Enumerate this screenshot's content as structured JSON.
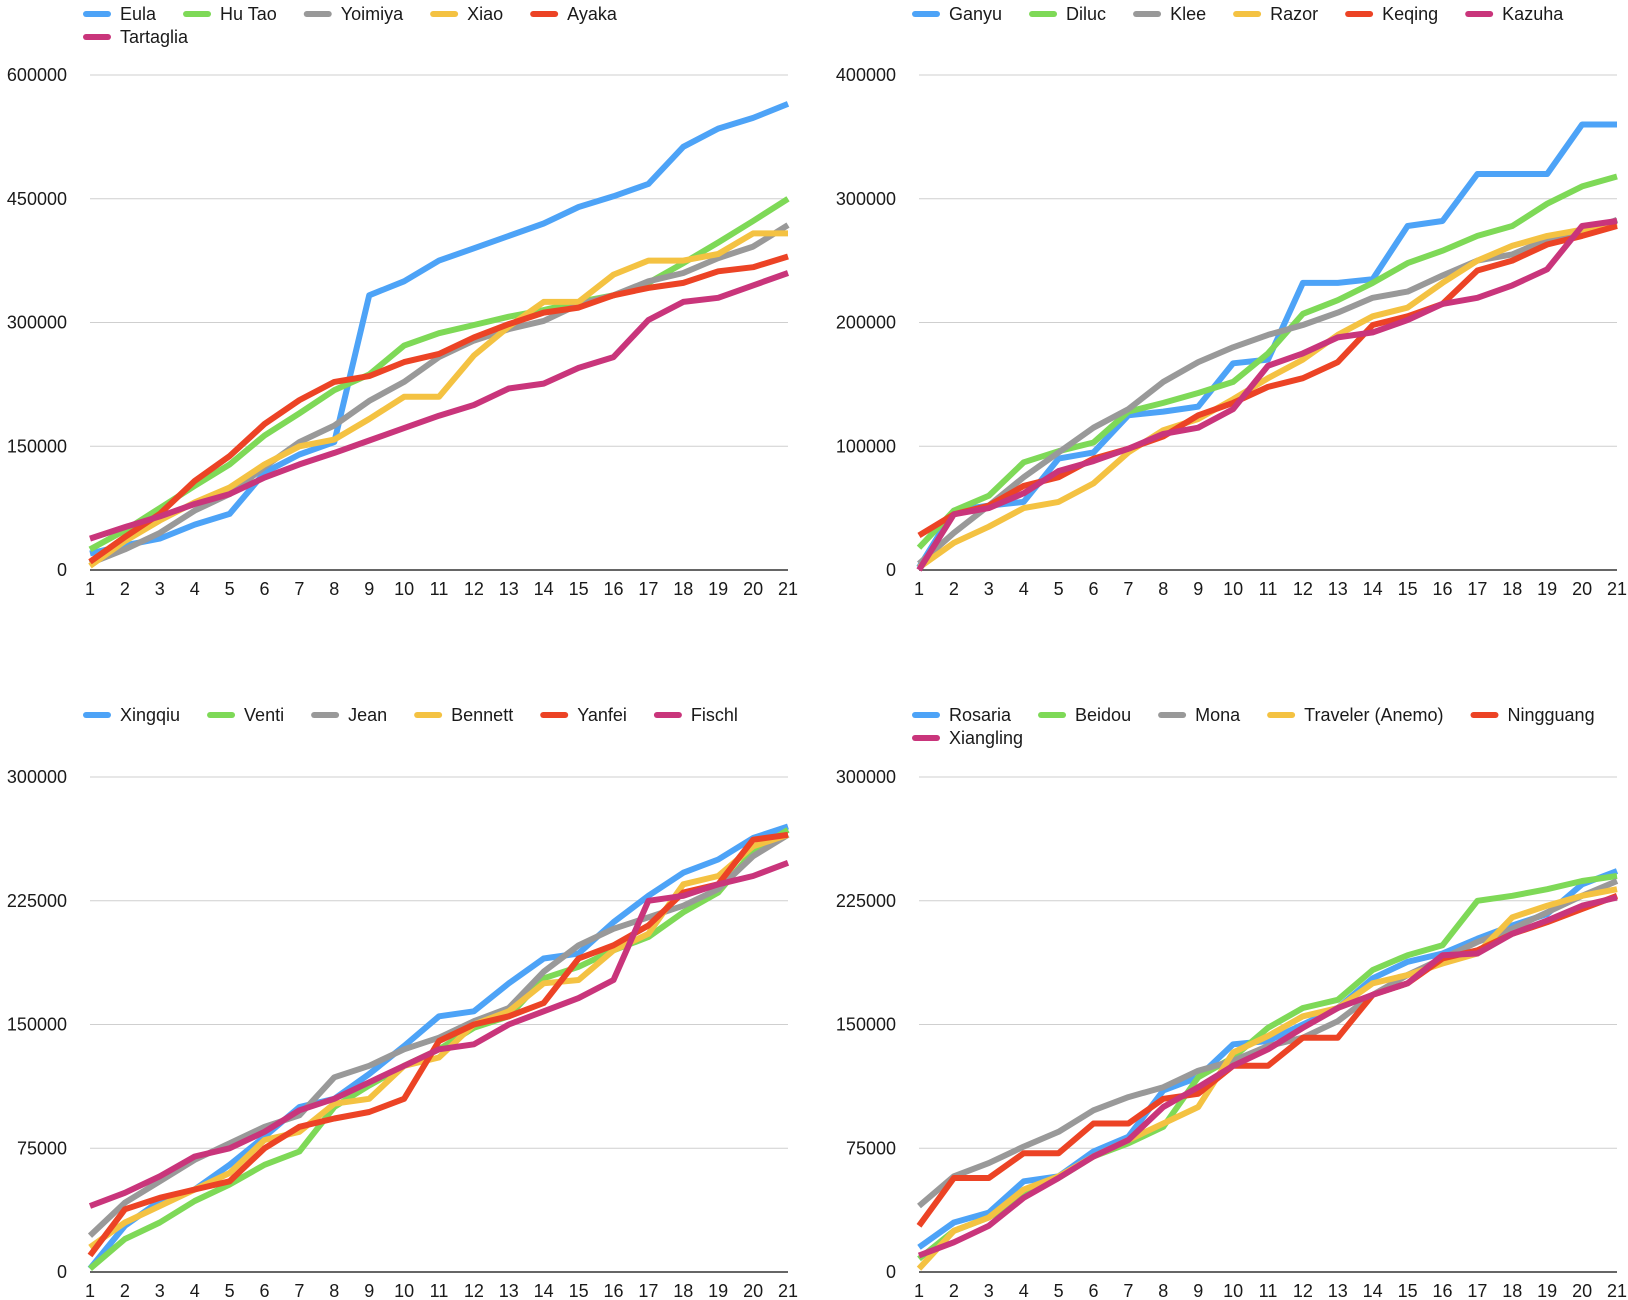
{
  "colors": {
    "blue": "#4DA3F7",
    "green": "#7ED957",
    "gray": "#999999",
    "yellow": "#F4C242",
    "red": "#EC4325",
    "magenta": "#C9357B",
    "grid": "#cfcfcf",
    "axis": "#333333",
    "text": "#1a1a1a"
  },
  "chart_data": [
    {
      "type": "line",
      "title": "",
      "xlabel": "",
      "ylabel": "",
      "x": [
        1,
        2,
        3,
        4,
        5,
        6,
        7,
        8,
        9,
        10,
        11,
        12,
        13,
        14,
        15,
        16,
        17,
        18,
        19,
        20,
        21
      ],
      "ylim": [
        0,
        600000
      ],
      "yticks": [
        "0",
        "150000",
        "300000",
        "450000",
        "600000"
      ],
      "grid": true,
      "legend": "top",
      "series": [
        {
          "name": "Eula",
          "color": "blue",
          "values": [
            20000,
            30000,
            38000,
            55000,
            68000,
            118000,
            140000,
            155000,
            333000,
            350000,
            375000,
            390000,
            405000,
            420000,
            440000,
            453000,
            468000,
            513000,
            535000,
            548000,
            565000
          ]
        },
        {
          "name": "Hu Tao",
          "color": "green",
          "values": [
            25000,
            48000,
            75000,
            102000,
            128000,
            163000,
            190000,
            218000,
            237000,
            272000,
            287000,
            297000,
            307000,
            315000,
            325000,
            333000,
            348000,
            372000,
            397000,
            423000,
            450000
          ]
        },
        {
          "name": "Yoimiya",
          "color": "gray",
          "values": [
            8000,
            25000,
            45000,
            72000,
            92000,
            125000,
            155000,
            175000,
            205000,
            228000,
            258000,
            278000,
            292000,
            302000,
            322000,
            333000,
            350000,
            360000,
            378000,
            392000,
            418000
          ]
        },
        {
          "name": "Xiao",
          "color": "yellow",
          "values": [
            5000,
            35000,
            60000,
            82000,
            100000,
            128000,
            150000,
            158000,
            183000,
            210000,
            210000,
            260000,
            295000,
            325000,
            325000,
            358000,
            375000,
            375000,
            383000,
            408000,
            408000
          ]
        },
        {
          "name": "Ayaka",
          "color": "red",
          "values": [
            10000,
            40000,
            68000,
            108000,
            138000,
            177000,
            206000,
            228000,
            235000,
            252000,
            262000,
            282000,
            298000,
            312000,
            318000,
            333000,
            342000,
            348000,
            362000,
            367000,
            380000
          ]
        },
        {
          "name": "Tartaglia",
          "color": "magenta",
          "values": [
            38000,
            52000,
            65000,
            80000,
            92000,
            112000,
            128000,
            142000,
            157000,
            172000,
            187000,
            200000,
            220000,
            226000,
            245000,
            258000,
            303000,
            325000,
            330000,
            345000,
            360000
          ]
        }
      ]
    },
    {
      "type": "line",
      "title": "",
      "xlabel": "",
      "ylabel": "",
      "x": [
        1,
        2,
        3,
        4,
        5,
        6,
        7,
        8,
        9,
        10,
        11,
        12,
        13,
        14,
        15,
        16,
        17,
        18,
        19,
        20,
        21
      ],
      "ylim": [
        0,
        400000
      ],
      "yticks": [
        "0",
        "100000",
        "200000",
        "300000",
        "400000"
      ],
      "grid": true,
      "legend": "top",
      "series": [
        {
          "name": "Ganyu",
          "color": "blue",
          "values": [
            2000,
            48000,
            52000,
            55000,
            90000,
            95000,
            125000,
            128000,
            132000,
            167000,
            170000,
            232000,
            232000,
            235000,
            278000,
            282000,
            320000,
            320000,
            320000,
            360000,
            360000
          ]
        },
        {
          "name": "Diluc",
          "color": "green",
          "values": [
            18000,
            48000,
            60000,
            87000,
            96000,
            103000,
            128000,
            135000,
            143000,
            152000,
            175000,
            207000,
            218000,
            232000,
            248000,
            258000,
            270000,
            278000,
            296000,
            310000,
            318000
          ]
        },
        {
          "name": "Klee",
          "color": "gray",
          "values": [
            5000,
            30000,
            52000,
            75000,
            95000,
            115000,
            130000,
            152000,
            168000,
            180000,
            190000,
            198000,
            208000,
            220000,
            225000,
            238000,
            250000,
            255000,
            267000,
            272000,
            283000
          ]
        },
        {
          "name": "Razor",
          "color": "yellow",
          "values": [
            2000,
            22000,
            35000,
            50000,
            55000,
            70000,
            95000,
            113000,
            122000,
            138000,
            155000,
            170000,
            190000,
            205000,
            212000,
            232000,
            250000,
            262000,
            270000,
            275000,
            280000
          ]
        },
        {
          "name": "Keqing",
          "color": "red",
          "values": [
            28000,
            45000,
            52000,
            68000,
            75000,
            90000,
            98000,
            108000,
            125000,
            135000,
            148000,
            155000,
            168000,
            198000,
            205000,
            215000,
            242000,
            250000,
            263000,
            270000,
            278000
          ]
        },
        {
          "name": "Kazuha",
          "color": "magenta",
          "values": [
            0,
            45000,
            50000,
            62000,
            80000,
            88000,
            98000,
            110000,
            115000,
            130000,
            165000,
            175000,
            188000,
            192000,
            202000,
            215000,
            220000,
            230000,
            243000,
            278000,
            282000
          ]
        }
      ]
    },
    {
      "type": "line",
      "title": "",
      "xlabel": "",
      "ylabel": "",
      "x": [
        1,
        2,
        3,
        4,
        5,
        6,
        7,
        8,
        9,
        10,
        11,
        12,
        13,
        14,
        15,
        16,
        17,
        18,
        19,
        20,
        21
      ],
      "ylim": [
        0,
        300000
      ],
      "yticks": [
        "0",
        "75000",
        "150000",
        "225000",
        "300000"
      ],
      "grid": true,
      "legend": "top",
      "series": [
        {
          "name": "Xingqiu",
          "color": "blue",
          "values": [
            2000,
            28000,
            43000,
            50000,
            65000,
            82000,
            100000,
            105000,
            120000,
            137000,
            155000,
            158000,
            175000,
            190000,
            193000,
            212000,
            228000,
            242000,
            250000,
            263000,
            270000
          ]
        },
        {
          "name": "Venti",
          "color": "green",
          "values": [
            2000,
            20000,
            30000,
            43000,
            53000,
            65000,
            73000,
            100000,
            113000,
            125000,
            135000,
            148000,
            155000,
            178000,
            185000,
            195000,
            203000,
            218000,
            230000,
            255000,
            268000
          ]
        },
        {
          "name": "Jean",
          "color": "gray",
          "values": [
            22000,
            42000,
            55000,
            68000,
            78000,
            88000,
            95000,
            118000,
            125000,
            135000,
            142000,
            152000,
            160000,
            182000,
            198000,
            208000,
            215000,
            222000,
            232000,
            252000,
            265000
          ]
        },
        {
          "name": "Bennett",
          "color": "yellow",
          "values": [
            15000,
            30000,
            40000,
            50000,
            60000,
            80000,
            85000,
            102000,
            105000,
            125000,
            130000,
            150000,
            158000,
            175000,
            177000,
            195000,
            205000,
            235000,
            240000,
            258000,
            265000
          ]
        },
        {
          "name": "Yanfei",
          "color": "red",
          "values": [
            10000,
            38000,
            45000,
            50000,
            55000,
            75000,
            88000,
            93000,
            97000,
            105000,
            140000,
            150000,
            155000,
            163000,
            190000,
            198000,
            210000,
            230000,
            235000,
            262000,
            265000
          ]
        },
        {
          "name": "Fischl",
          "color": "magenta",
          "values": [
            40000,
            48000,
            58000,
            70000,
            75000,
            85000,
            98000,
            105000,
            115000,
            125000,
            135000,
            138000,
            150000,
            158000,
            166000,
            177000,
            225000,
            228000,
            235000,
            240000,
            248000
          ]
        }
      ]
    },
    {
      "type": "line",
      "title": "",
      "xlabel": "",
      "ylabel": "",
      "x": [
        1,
        2,
        3,
        4,
        5,
        6,
        7,
        8,
        9,
        10,
        11,
        12,
        13,
        14,
        15,
        16,
        17,
        18,
        19,
        20,
        21
      ],
      "ylim": [
        0,
        300000
      ],
      "yticks": [
        "0",
        "75000",
        "150000",
        "225000",
        "300000"
      ],
      "grid": true,
      "legend": "top",
      "series": [
        {
          "name": "Rosaria",
          "color": "blue",
          "values": [
            15000,
            30000,
            36000,
            55000,
            58000,
            73000,
            82000,
            110000,
            118000,
            138000,
            140000,
            150000,
            160000,
            178000,
            188000,
            193000,
            202000,
            210000,
            217000,
            235000,
            243000
          ]
        },
        {
          "name": "Beidou",
          "color": "green",
          "values": [
            8000,
            25000,
            33000,
            46000,
            57000,
            70000,
            78000,
            88000,
            118000,
            130000,
            148000,
            160000,
            165000,
            183000,
            192000,
            198000,
            225000,
            228000,
            232000,
            237000,
            240000
          ]
        },
        {
          "name": "Mona",
          "color": "gray",
          "values": [
            40000,
            58000,
            66000,
            76000,
            85000,
            98000,
            106000,
            112000,
            122000,
            128000,
            137000,
            142000,
            152000,
            168000,
            180000,
            190000,
            200000,
            208000,
            218000,
            228000,
            237000
          ]
        },
        {
          "name": "Traveler (Anemo)",
          "color": "yellow",
          "values": [
            2000,
            25000,
            33000,
            50000,
            58000,
            70000,
            80000,
            90000,
            100000,
            133000,
            143000,
            155000,
            160000,
            175000,
            180000,
            187000,
            193000,
            215000,
            222000,
            228000,
            232000
          ]
        },
        {
          "name": "Ningguang",
          "color": "red",
          "values": [
            28000,
            57000,
            57000,
            72000,
            72000,
            90000,
            90000,
            105000,
            108000,
            125000,
            125000,
            142000,
            142000,
            168000,
            175000,
            190000,
            195000,
            205000,
            212000,
            220000,
            228000
          ]
        },
        {
          "name": "Xiangling",
          "color": "magenta",
          "values": [
            10000,
            18000,
            28000,
            45000,
            57000,
            70000,
            80000,
            100000,
            112000,
            125000,
            135000,
            148000,
            160000,
            168000,
            175000,
            192000,
            193000,
            205000,
            213000,
            222000,
            227000
          ]
        }
      ]
    }
  ]
}
